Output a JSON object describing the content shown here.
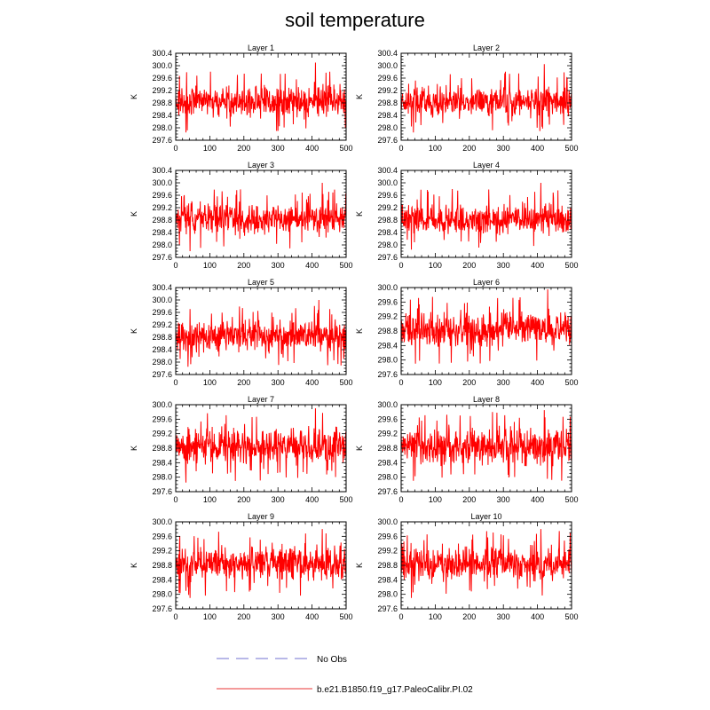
{
  "title": "soil temperature",
  "legend": {
    "entries": [
      {
        "label": "No Obs",
        "color": "#a0a0e0",
        "style": "dashed"
      },
      {
        "label": "b.e21.B1850.f19_g17.PaleoCalibr.PI.02",
        "color": "#f07878",
        "style": "solid"
      }
    ]
  },
  "chart_data": [
    {
      "type": "line",
      "title": "Layer 1",
      "ylabel": "K",
      "xlim": [
        0,
        500
      ],
      "ylim": [
        297.6,
        300.4
      ],
      "xticks": [
        0,
        100,
        200,
        300,
        400,
        500
      ],
      "yticks": [
        297.6,
        298.0,
        298.4,
        298.8,
        299.2,
        299.6,
        300.0,
        300.4
      ],
      "series": [
        {
          "name": "b.e21.B1850.f19_g17.PaleoCalibr.PI.02",
          "color": "#ff0000",
          "mean": 298.85,
          "amplitude": 0.3,
          "max_value": 300.1,
          "min_value": 297.85,
          "n_points": 500
        }
      ]
    },
    {
      "type": "line",
      "title": "Layer 2",
      "ylabel": "K",
      "xlim": [
        0,
        500
      ],
      "ylim": [
        297.6,
        300.4
      ],
      "xticks": [
        0,
        100,
        200,
        300,
        400,
        500
      ],
      "yticks": [
        297.6,
        298.0,
        298.4,
        298.8,
        299.2,
        299.6,
        300.0,
        300.4
      ],
      "series": [
        {
          "name": "b.e21.B1850.f19_g17.PaleoCalibr.PI.02",
          "color": "#ff0000",
          "mean": 298.85,
          "amplitude": 0.3,
          "max_value": 300.05,
          "min_value": 297.85,
          "n_points": 500
        }
      ]
    },
    {
      "type": "line",
      "title": "Layer 3",
      "ylabel": "K",
      "xlim": [
        0,
        500
      ],
      "ylim": [
        297.6,
        300.4
      ],
      "xticks": [
        0,
        100,
        200,
        300,
        400,
        500
      ],
      "yticks": [
        297.6,
        298.0,
        298.4,
        298.8,
        299.2,
        299.6,
        300.0,
        300.4
      ],
      "series": [
        {
          "name": "b.e21.B1850.f19_g17.PaleoCalibr.PI.02",
          "color": "#ff0000",
          "mean": 298.85,
          "amplitude": 0.3,
          "max_value": 300.0,
          "min_value": 297.8,
          "n_points": 500
        }
      ]
    },
    {
      "type": "line",
      "title": "Layer 4",
      "ylabel": "K",
      "xlim": [
        0,
        500
      ],
      "ylim": [
        297.6,
        300.4
      ],
      "xticks": [
        0,
        100,
        200,
        300,
        400,
        500
      ],
      "yticks": [
        297.6,
        298.0,
        298.4,
        298.8,
        299.2,
        299.6,
        300.0,
        300.4
      ],
      "series": [
        {
          "name": "b.e21.B1850.f19_g17.PaleoCalibr.PI.02",
          "color": "#ff0000",
          "mean": 298.85,
          "amplitude": 0.3,
          "max_value": 300.0,
          "min_value": 297.85,
          "n_points": 500
        }
      ]
    },
    {
      "type": "line",
      "title": "Layer 5",
      "ylabel": "K",
      "xlim": [
        0,
        500
      ],
      "ylim": [
        297.6,
        300.4
      ],
      "xticks": [
        0,
        100,
        200,
        300,
        400,
        500
      ],
      "yticks": [
        297.6,
        298.0,
        298.4,
        298.8,
        299.2,
        299.6,
        300.0,
        300.4
      ],
      "series": [
        {
          "name": "b.e21.B1850.f19_g17.PaleoCalibr.PI.02",
          "color": "#ff0000",
          "mean": 298.85,
          "amplitude": 0.3,
          "max_value": 300.0,
          "min_value": 297.85,
          "n_points": 500
        }
      ]
    },
    {
      "type": "line",
      "title": "Layer 6",
      "ylabel": "K",
      "xlim": [
        0,
        500
      ],
      "ylim": [
        297.6,
        300.0
      ],
      "xticks": [
        0,
        100,
        200,
        300,
        400,
        500
      ],
      "yticks": [
        297.6,
        298.0,
        298.4,
        298.8,
        299.2,
        299.6,
        300.0
      ],
      "series": [
        {
          "name": "b.e21.B1850.f19_g17.PaleoCalibr.PI.02",
          "color": "#ff0000",
          "mean": 298.85,
          "amplitude": 0.3,
          "max_value": 299.95,
          "min_value": 297.9,
          "n_points": 500
        }
      ]
    },
    {
      "type": "line",
      "title": "Layer 7",
      "ylabel": "K",
      "xlim": [
        0,
        500
      ],
      "ylim": [
        297.6,
        300.0
      ],
      "xticks": [
        0,
        100,
        200,
        300,
        400,
        500
      ],
      "yticks": [
        297.6,
        298.0,
        298.4,
        298.8,
        299.2,
        299.6,
        300.0
      ],
      "series": [
        {
          "name": "b.e21.B1850.f19_g17.PaleoCalibr.PI.02",
          "color": "#ff0000",
          "mean": 298.85,
          "amplitude": 0.3,
          "max_value": 299.9,
          "min_value": 297.85,
          "n_points": 500
        }
      ]
    },
    {
      "type": "line",
      "title": "Layer 8",
      "ylabel": "K",
      "xlim": [
        0,
        500
      ],
      "ylim": [
        297.6,
        300.0
      ],
      "xticks": [
        0,
        100,
        200,
        300,
        400,
        500
      ],
      "yticks": [
        297.6,
        298.0,
        298.4,
        298.8,
        299.2,
        299.6,
        300.0
      ],
      "series": [
        {
          "name": "b.e21.B1850.f19_g17.PaleoCalibr.PI.02",
          "color": "#ff0000",
          "mean": 298.85,
          "amplitude": 0.3,
          "max_value": 299.85,
          "min_value": 297.9,
          "n_points": 500
        }
      ]
    },
    {
      "type": "line",
      "title": "Layer 9",
      "ylabel": "K",
      "xlim": [
        0,
        500
      ],
      "ylim": [
        297.6,
        300.0
      ],
      "xticks": [
        0,
        100,
        200,
        300,
        400,
        500
      ],
      "yticks": [
        297.6,
        298.0,
        298.4,
        298.8,
        299.2,
        299.6,
        300.0
      ],
      "series": [
        {
          "name": "b.e21.B1850.f19_g17.PaleoCalibr.PI.02",
          "color": "#ff0000",
          "mean": 298.85,
          "amplitude": 0.28,
          "max_value": 299.8,
          "min_value": 297.9,
          "n_points": 500
        }
      ]
    },
    {
      "type": "line",
      "title": "Layer 10",
      "ylabel": "K",
      "xlim": [
        0,
        500
      ],
      "ylim": [
        297.6,
        300.0
      ],
      "xticks": [
        0,
        100,
        200,
        300,
        400,
        500
      ],
      "yticks": [
        297.6,
        298.0,
        298.4,
        298.8,
        299.2,
        299.6,
        300.0
      ],
      "series": [
        {
          "name": "b.e21.B1850.f19_g17.PaleoCalibr.PI.02",
          "color": "#ff0000",
          "mean": 298.85,
          "amplitude": 0.28,
          "max_value": 299.8,
          "min_value": 297.9,
          "n_points": 500
        }
      ]
    }
  ]
}
